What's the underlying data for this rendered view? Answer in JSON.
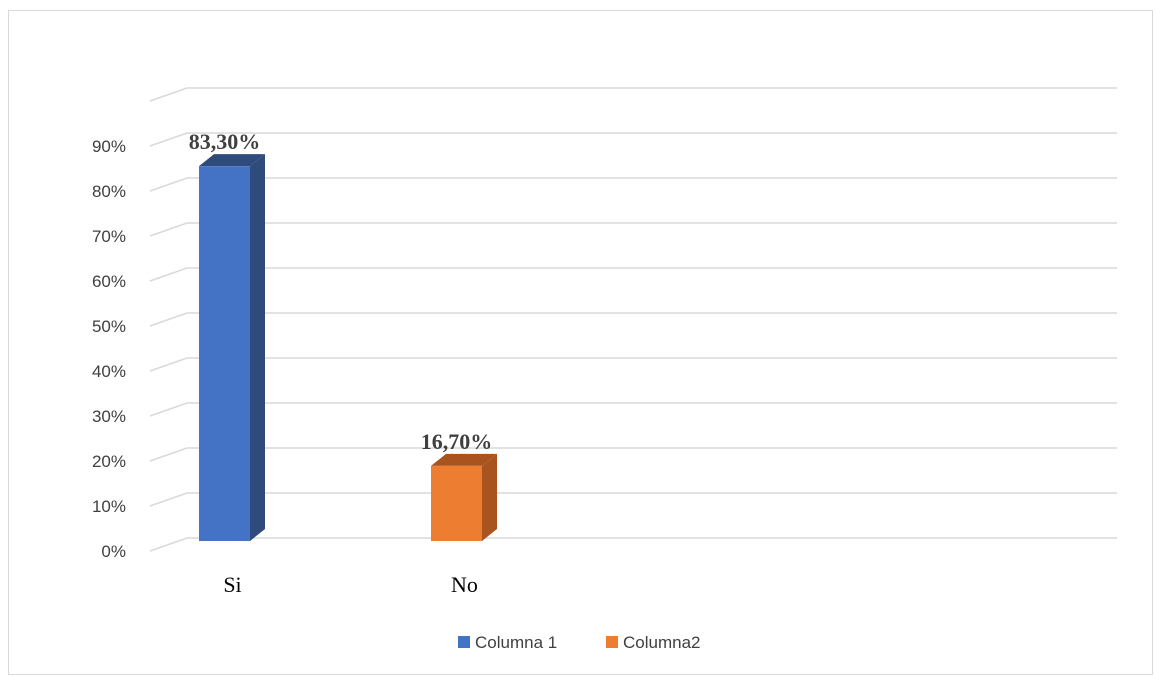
{
  "chart_data": {
    "type": "bar",
    "style": "3d-clustered-column",
    "categories": [
      "Si",
      "No"
    ],
    "series": [
      {
        "name": "Columna 1",
        "values": [
          0.833,
          null
        ],
        "color": "#4472C4",
        "side_color": "#2F4B7C"
      },
      {
        "name": "Columna2",
        "values": [
          null,
          0.167
        ],
        "color": "#ED7D31",
        "side_color": "#A9541E"
      }
    ],
    "data_labels": [
      "83,30%",
      "16,70%"
    ],
    "y_ticks": [
      "0%",
      "10%",
      "20%",
      "30%",
      "40%",
      "50%",
      "60%",
      "70%",
      "80%",
      "90%"
    ],
    "ylim": [
      0,
      0.9
    ],
    "grid": true,
    "legend_position": "bottom",
    "title": "",
    "xlabel": "",
    "ylabel": ""
  }
}
